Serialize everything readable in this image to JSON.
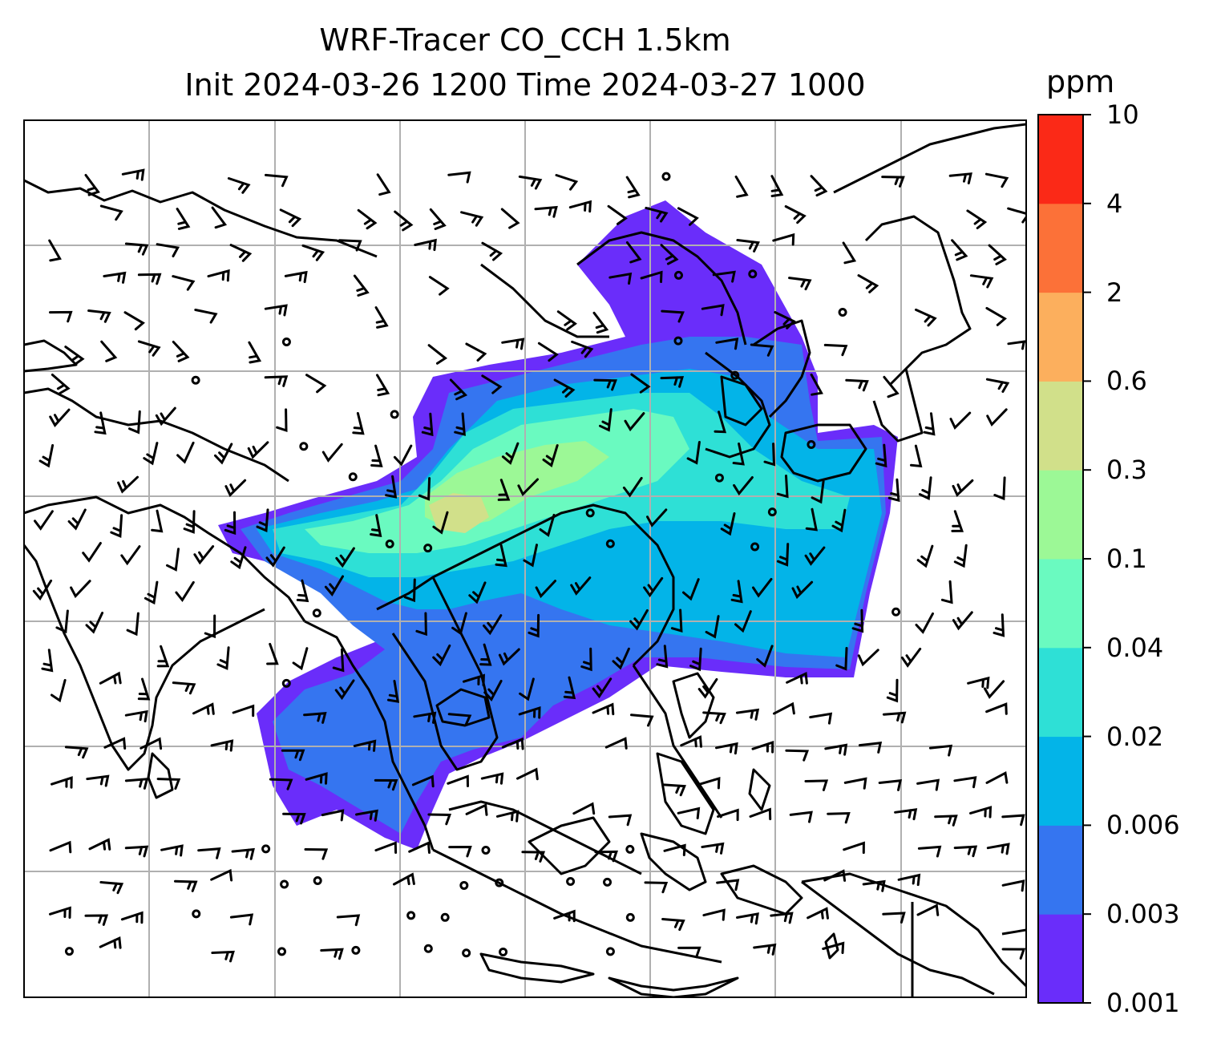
{
  "title": {
    "line1": "WRF-Tracer CO_CCH 1.5km",
    "line2": "Init 2024-03-26 1200 Time 2024-03-27 1000"
  },
  "colorbar": {
    "label": "ppm",
    "levels": [
      "0.001",
      "0.003",
      "0.006",
      "0.02",
      "0.04",
      "0.1",
      "0.3",
      "0.6",
      "2",
      "4",
      "10"
    ],
    "colors": [
      "#6a2dfa",
      "#3575f0",
      "#03b4e8",
      "#2ee0d6",
      "#6afac0",
      "#9cf896",
      "#d1e08a",
      "#fcaf5d",
      "#fc7138",
      "#fb2917"
    ]
  },
  "colors": {
    "coastline": "#000000",
    "gridline": "#b0b0b0",
    "barb": "#000000",
    "frame": "#000000"
  }
}
